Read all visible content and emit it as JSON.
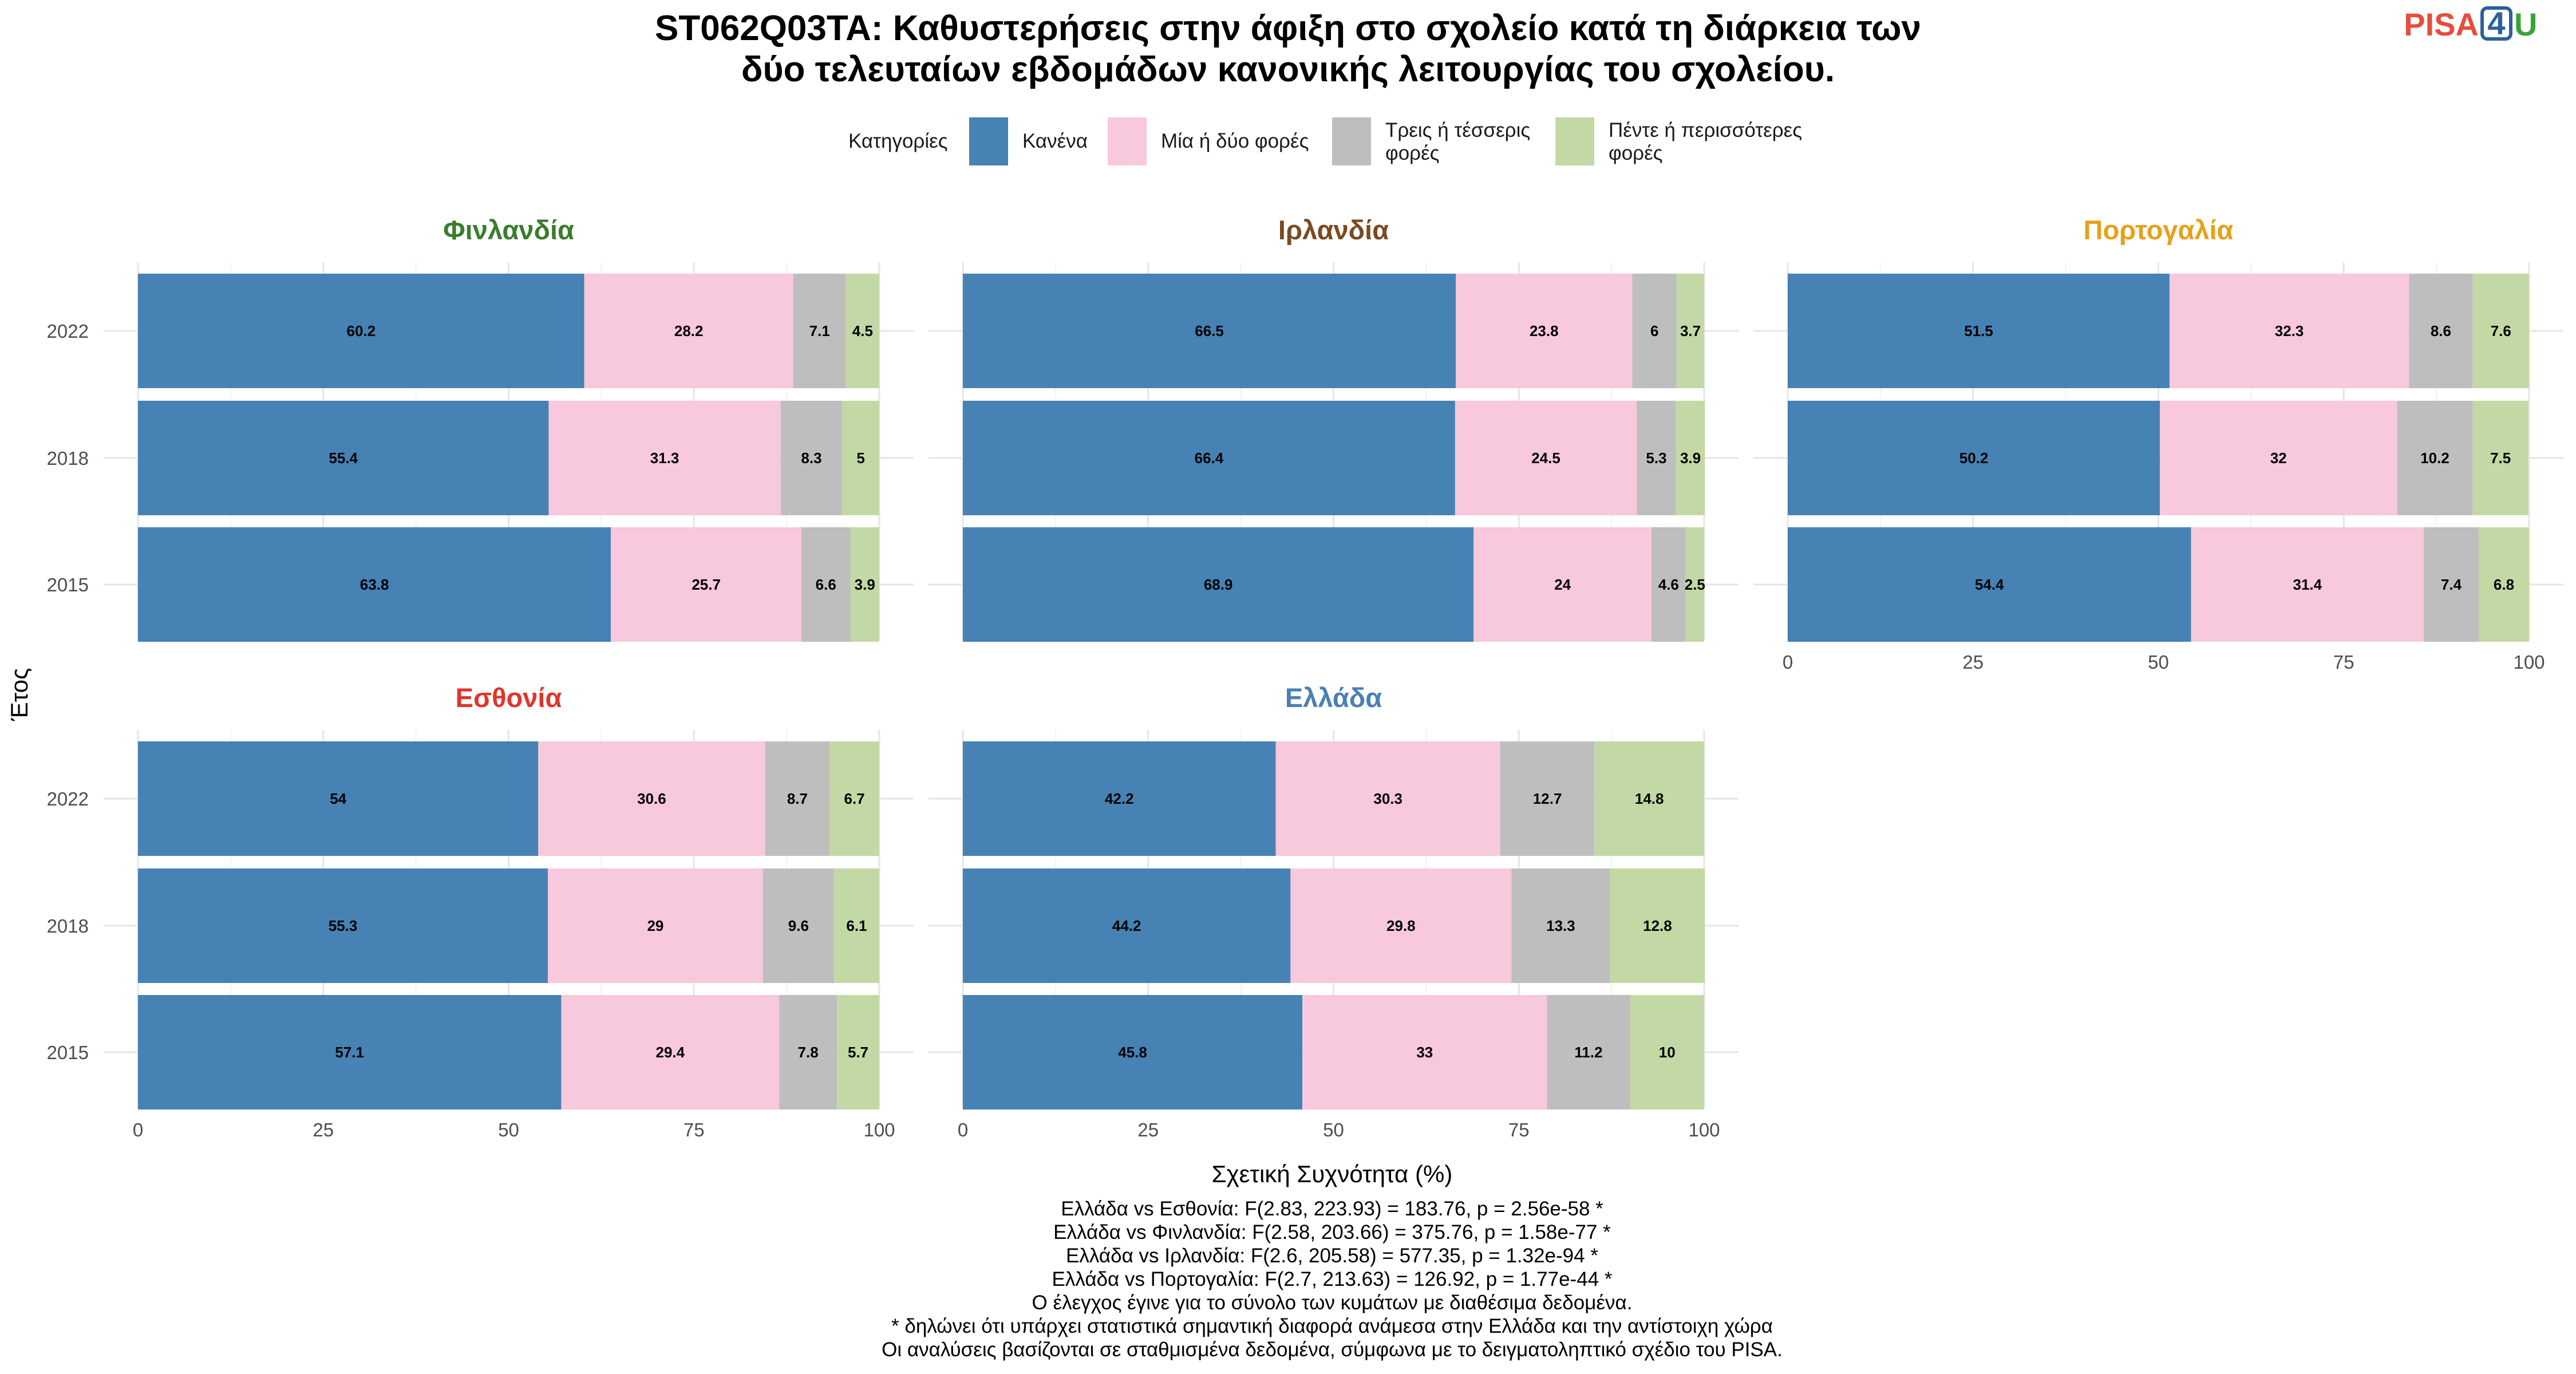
{
  "title_lines": [
    "ST062Q03TA: Καθυστερήσεις στην άφιξη στο σχολείο κατά τη διάρκεια των",
    "δύο τελευταίων εβδομάδων κανονικής λειτουργίας του σχολείου."
  ],
  "logo": {
    "part1": "PISA",
    "part1_color": "#e74c3c",
    "part2": "4",
    "part2_color": "#2c5f9e",
    "part3": "U",
    "part3_color": "#3aa335"
  },
  "legend": {
    "title": "Κατηγορίες",
    "items": [
      {
        "lines": [
          "Κανένα"
        ],
        "color": "#4682b4"
      },
      {
        "lines": [
          "Μία ή δύο φορές"
        ],
        "color": "#f8c8dc"
      },
      {
        "lines": [
          "Τρεις ή τέσσερις",
          "φορές"
        ],
        "color": "#bebebe"
      },
      {
        "lines": [
          "Πέντε ή περισσότερες",
          "φορές"
        ],
        "color": "#c3d9a5"
      }
    ]
  },
  "chart_data": {
    "type": "bar",
    "orientation": "horizontal",
    "stacked": true,
    "xlabel": "Σχετική Συχνότητα (%)",
    "ylabel": "Έτος",
    "xlim": [
      0,
      100
    ],
    "x_ticks": [
      "0",
      "25",
      "50",
      "75",
      "100"
    ],
    "categories": [
      "2022",
      "2018",
      "2015"
    ],
    "series_names": [
      "Κανένα",
      "Μία ή δύο φορές",
      "Τρεις ή τέσσερις φορές",
      "Πέντε ή περισσότερες φορές"
    ],
    "grid": true,
    "legend_position": "top",
    "panels": [
      {
        "name": "Φινλανδία",
        "color": "#3a7d2c",
        "values": [
          [
            60.2,
            28.2,
            7.1,
            4.5
          ],
          [
            55.4,
            31.3,
            8.3,
            5
          ],
          [
            63.8,
            25.7,
            6.6,
            3.9
          ]
        ]
      },
      {
        "name": "Ιρλανδία",
        "color": "#7a4a1f",
        "values": [
          [
            66.5,
            23.8,
            6,
            3.7
          ],
          [
            66.4,
            24.5,
            5.3,
            3.9
          ],
          [
            68.9,
            24,
            4.6,
            2.5
          ]
        ]
      },
      {
        "name": "Πορτογαλία",
        "color": "#e6a11a",
        "values": [
          [
            51.5,
            32.3,
            8.6,
            7.6
          ],
          [
            50.2,
            32,
            10.2,
            7.5
          ],
          [
            54.4,
            31.4,
            7.4,
            6.8
          ]
        ]
      },
      {
        "name": "Εσθονία",
        "color": "#e0352b",
        "values": [
          [
            54,
            30.6,
            8.7,
            6.7
          ],
          [
            55.3,
            29,
            9.6,
            6.1
          ],
          [
            57.1,
            29.4,
            7.8,
            5.7
          ]
        ]
      },
      {
        "name": "Ελλάδα",
        "color": "#4a7fb5",
        "values": [
          [
            42.2,
            30.3,
            12.7,
            14.8
          ],
          [
            44.2,
            29.8,
            13.3,
            12.8
          ],
          [
            45.8,
            33,
            11.2,
            10
          ]
        ]
      }
    ]
  },
  "caption_lines": [
    "Ελλάδα vs Εσθονία: F(2.83, 223.93) = 183.76, p = 2.56e-58 *",
    "Ελλάδα vs Φινλανδία: F(2.58, 203.66) = 375.76, p = 1.58e-77 *",
    "Ελλάδα vs Ιρλανδία: F(2.6, 205.58) = 577.35, p = 1.32e-94 *",
    "Ελλάδα vs Πορτογαλία: F(2.7, 213.63) = 126.92, p = 1.77e-44 *",
    "Ο έλεγχος έγινε για το σύνολο των κυμάτων με διαθέσιμα δεδομένα.",
    "* δηλώνει ότι υπάρχει στατιστικά σημαντική διαφορά ανάμεσα στην Ελλάδα και την αντίστοιχη χώρα",
    "Οι αναλύσεις βασίζονται σε σταθμισμένα δεδομένα, σύμφωνα με το δειγματοληπτικό σχέδιο του PISA."
  ]
}
